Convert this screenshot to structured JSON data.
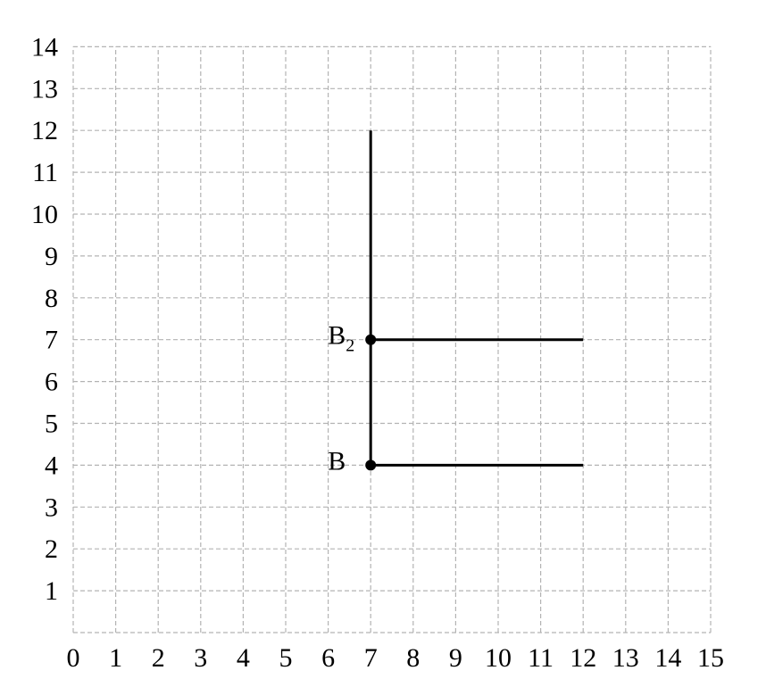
{
  "chart_data": {
    "type": "diagram",
    "xlim": [
      0,
      15
    ],
    "ylim": [
      0,
      14
    ],
    "grid": true,
    "grid_style": "dashed",
    "x_ticks": [
      "0",
      "1",
      "2",
      "3",
      "4",
      "5",
      "6",
      "7",
      "8",
      "9",
      "10",
      "11",
      "12",
      "13",
      "14",
      "15"
    ],
    "y_ticks": [
      "1",
      "2",
      "3",
      "4",
      "5",
      "6",
      "7",
      "8",
      "9",
      "10",
      "11",
      "12",
      "13",
      "14"
    ],
    "colors": {
      "grid": "#b3b3b3",
      "ink": "#000000"
    },
    "segments": [
      {
        "name": "vertical-line",
        "from": [
          7,
          4
        ],
        "to": [
          7,
          12
        ]
      },
      {
        "name": "horizontal-line-b2",
        "from": [
          7,
          7
        ],
        "to": [
          12,
          7
        ]
      },
      {
        "name": "horizontal-line-b",
        "from": [
          7,
          4
        ],
        "to": [
          12,
          4
        ]
      }
    ],
    "points": [
      {
        "name": "point-b2",
        "x": 7,
        "y": 7,
        "label": "B",
        "sub": "2"
      },
      {
        "name": "point-b",
        "x": 7,
        "y": 4,
        "label": "B",
        "sub": ""
      }
    ]
  }
}
